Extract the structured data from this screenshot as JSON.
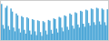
{
  "chart_data": {
    "type": "bar",
    "values": [
      130,
      75,
      65,
      120,
      125,
      72,
      62,
      118,
      110,
      68,
      58,
      105,
      100,
      65,
      55,
      98,
      95,
      62,
      52,
      95,
      92,
      60,
      50,
      90,
      88,
      58,
      48,
      87,
      85,
      56,
      46,
      85,
      82,
      60,
      50,
      88,
      86,
      62,
      52,
      92,
      90,
      65,
      55,
      96,
      94,
      68,
      58,
      100,
      98,
      70,
      62,
      105,
      102,
      73,
      65,
      108,
      106,
      76,
      68,
      112,
      110,
      78,
      70,
      115,
      113,
      80,
      73,
      118,
      116,
      82,
      75,
      120,
      118,
      84,
      76,
      118,
      115,
      82,
      74,
      116
    ],
    "color": "#4fa8d8",
    "ylim": [
      35,
      138
    ],
    "tick_labels": false
  }
}
